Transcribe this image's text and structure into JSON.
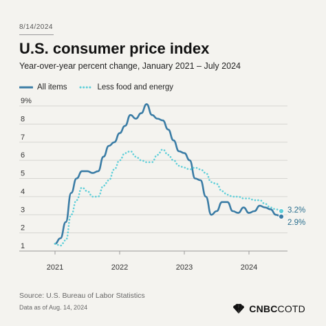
{
  "header": {
    "date": "8/14/2024",
    "title": "U.S. consumer price index",
    "subtitle": "Year-over-year percent change, January 2021 – July 2024"
  },
  "footer": {
    "source": "Source: U.S. Bureau of Labor Statistics",
    "note": "Data as of Aug. 14, 2024",
    "logo_text": "CNBC",
    "logo_suffix": "COTD",
    "logo_icon": "peacock-icon"
  },
  "colors": {
    "all_items": "#3a7ca5",
    "core": "#5fcfd9",
    "background": "#f4f3ef"
  },
  "chart_data": {
    "type": "line",
    "title": "U.S. consumer price index",
    "subtitle": "Year-over-year percent change, January 2021 – July 2024",
    "x_start": "2021-01",
    "x_end": "2024-07",
    "xticks": [
      "2021",
      "2022",
      "2023",
      "2024"
    ],
    "ylim": [
      1,
      9
    ],
    "yticks": [
      "1",
      "2",
      "3",
      "4",
      "5",
      "6",
      "7",
      "8",
      "9%"
    ],
    "grid": "horizontal",
    "legend_position": "top-left",
    "series": [
      {
        "name": "All items",
        "style": "solid",
        "end_label": "2.9%",
        "values": [
          1.4,
          1.7,
          2.6,
          4.2,
          5.0,
          5.4,
          5.4,
          5.3,
          5.4,
          6.2,
          6.8,
          7.0,
          7.5,
          7.9,
          8.5,
          8.3,
          8.6,
          9.1,
          8.5,
          8.3,
          8.2,
          7.7,
          7.1,
          6.5,
          6.4,
          6.0,
          5.0,
          4.9,
          4.0,
          3.0,
          3.2,
          3.7,
          3.7,
          3.2,
          3.1,
          3.4,
          3.1,
          3.2,
          3.5,
          3.4,
          3.3,
          3.0,
          2.9
        ]
      },
      {
        "name": "Less food and energy",
        "style": "dotted",
        "end_label": "3.2%",
        "values": [
          1.4,
          1.3,
          1.6,
          3.0,
          3.8,
          4.5,
          4.3,
          4.0,
          4.0,
          4.6,
          4.9,
          5.5,
          6.0,
          6.4,
          6.5,
          6.2,
          6.0,
          5.9,
          5.9,
          6.3,
          6.6,
          6.3,
          6.0,
          5.7,
          5.6,
          5.5,
          5.6,
          5.5,
          5.3,
          4.8,
          4.7,
          4.3,
          4.1,
          4.0,
          4.0,
          3.9,
          3.9,
          3.8,
          3.8,
          3.6,
          3.4,
          3.3,
          3.2
        ]
      }
    ]
  }
}
